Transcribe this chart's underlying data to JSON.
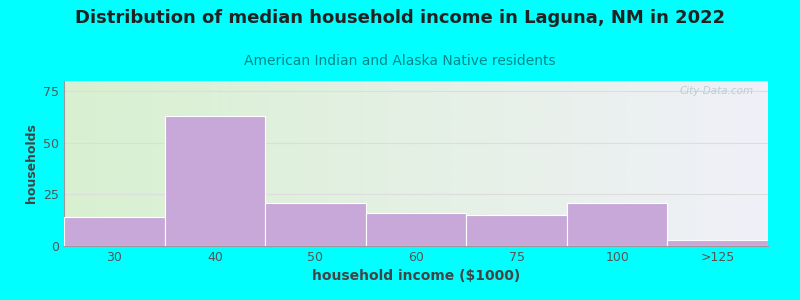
{
  "title": "Distribution of median household income in Laguna, NM in 2022",
  "subtitle": "American Indian and Alaska Native residents",
  "xlabel": "household income ($1000)",
  "ylabel": "households",
  "title_fontsize": 13,
  "subtitle_fontsize": 10,
  "xlabel_fontsize": 10,
  "ylabel_fontsize": 9,
  "bg_color": "#00FFFF",
  "plot_bg_left": "#d8f0d0",
  "plot_bg_right": "#f0f0f8",
  "bar_color": "#c8a8d8",
  "bar_edge_color": "#ffffff",
  "categories": [
    "30",
    "40",
    "50",
    "60",
    "75",
    "100",
    ">125"
  ],
  "values": [
    14,
    63,
    21,
    16,
    15,
    21,
    3
  ],
  "ylim": [
    0,
    80
  ],
  "yticks": [
    0,
    25,
    50,
    75
  ],
  "grid_color": "#dddddd",
  "watermark": "City-Data.com",
  "title_color": "#222222",
  "subtitle_color": "#008888"
}
